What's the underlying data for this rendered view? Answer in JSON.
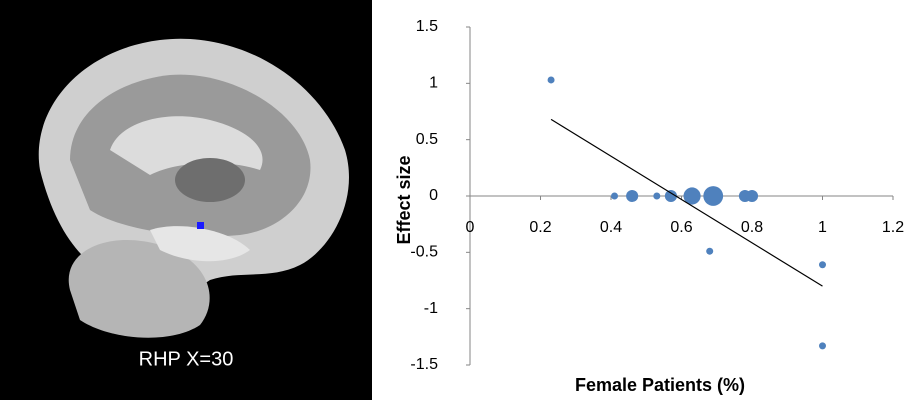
{
  "image": {
    "label": "RHP  X=30"
  },
  "chart_data": {
    "type": "scatter",
    "xlabel": "Female Patients  (%)",
    "ylabel": "Effect size",
    "x": [
      0.23,
      0.41,
      0.46,
      0.53,
      0.57,
      0.63,
      0.69,
      0.68,
      0.78,
      0.8,
      1.0,
      1.0
    ],
    "values": [
      1.03,
      0,
      0,
      0,
      0,
      0,
      0,
      -0.49,
      0,
      0,
      -0.61,
      -1.33
    ],
    "sizes": [
      1,
      1,
      3,
      1,
      3,
      6,
      8,
      1,
      3,
      3,
      1,
      1
    ],
    "color": "#4f81bd",
    "trendline": {
      "x": [
        0.23,
        1.0
      ],
      "y": [
        0.68,
        -0.8
      ],
      "color": "#000000"
    },
    "xlim": [
      0,
      1.2
    ],
    "xticks": [
      0,
      0.2,
      0.4,
      0.6,
      0.8,
      1,
      1.2
    ],
    "ylim": [
      -1.5,
      1.5
    ],
    "yticks": [
      1.5,
      1,
      0.5,
      0,
      -0.5,
      -1,
      -1.5
    ]
  }
}
